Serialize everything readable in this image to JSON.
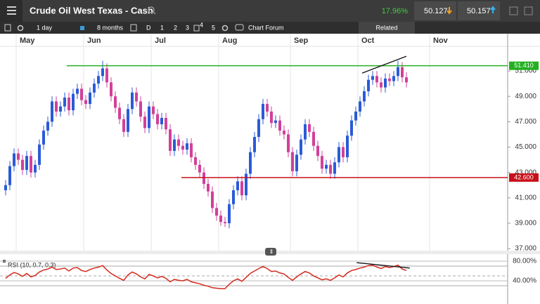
{
  "toolbar": {
    "instrument": "Crude Oil West Texas - Cash",
    "change": "17.96%",
    "sell": "50.127",
    "buy": "50.157",
    "interval": "1 day",
    "range": "8 months",
    "periods": [
      "D",
      "1",
      "2",
      "3",
      "4",
      "5"
    ],
    "forum": "Chart Forum",
    "related": "Related"
  },
  "chart_data": [
    {
      "type": "candlestick",
      "categories": [
        null,
        null,
        null,
        "May",
        null,
        null,
        null,
        null,
        null,
        null,
        null,
        null,
        null,
        null,
        null,
        null,
        null,
        null,
        null,
        "Jun",
        null,
        null,
        null,
        null,
        null,
        null,
        null,
        null,
        null,
        null,
        null,
        null,
        null,
        null,
        null,
        "Jul",
        null,
        null,
        null,
        null,
        null,
        null,
        null,
        null,
        null,
        null,
        null,
        null,
        null,
        null,
        null,
        "Aug",
        null,
        null,
        null,
        null,
        null,
        null,
        null,
        null,
        null,
        null,
        null,
        null,
        null,
        null,
        null,
        null,
        "Sep",
        null,
        null,
        null,
        null,
        null,
        null,
        null,
        null,
        null,
        null,
        null,
        null,
        null,
        null,
        null,
        "Oct",
        null,
        null,
        null,
        null,
        null,
        null,
        null,
        null,
        null,
        null,
        null,
        null,
        null,
        null,
        null,
        null,
        "Nov"
      ],
      "open": [
        41.6,
        42.0,
        43.5,
        44.5,
        44.0,
        43.2,
        44.3,
        43.0,
        43.6,
        45.2,
        46.3,
        47.0,
        48.6,
        47.8,
        48.2,
        48.9,
        47.9,
        49.2,
        49.6,
        48.7,
        48.4,
        49.3,
        50.0,
        50.6,
        51.2,
        50.1,
        49.0,
        48.1,
        47.2,
        46.2,
        48.0,
        49.3,
        48.6,
        47.4,
        46.5,
        48.2,
        47.6,
        46.8,
        47.3,
        46.4,
        44.7,
        45.6,
        45.1,
        44.8,
        45.3,
        44.2,
        43.6,
        43.0,
        42.1,
        41.5,
        40.2,
        39.6,
        39.1,
        39.0,
        40.5,
        41.6,
        42.3,
        41.2,
        42.9,
        44.6,
        45.8,
        47.2,
        48.4,
        47.8,
        46.9,
        47.1,
        46.3,
        46.0,
        44.6,
        43.1,
        44.4,
        45.6,
        46.8,
        46.2,
        45.1,
        44.3,
        43.3,
        43.6,
        42.9,
        43.8,
        45.0,
        44.2,
        45.9,
        47.1,
        47.8,
        48.6,
        49.4,
        50.3,
        50.6,
        50.1,
        49.7,
        50.4,
        50.2,
        50.6,
        51.3,
        50.5,
        null,
        null,
        null,
        null,
        null,
        null
      ],
      "high": [
        42.4,
        43.9,
        44.9,
        44.9,
        44.4,
        44.7,
        44.7,
        44.0,
        45.6,
        46.7,
        47.4,
        49.0,
        49.0,
        48.6,
        49.3,
        49.3,
        49.6,
        50.0,
        50.0,
        49.1,
        49.7,
        50.4,
        51.0,
        51.8,
        51.6,
        50.5,
        49.4,
        48.5,
        47.6,
        48.4,
        49.7,
        49.7,
        49.0,
        47.8,
        48.6,
        48.6,
        48.0,
        47.7,
        47.7,
        46.8,
        46.0,
        46.0,
        45.5,
        45.7,
        45.7,
        44.6,
        44.0,
        43.4,
        42.5,
        41.9,
        40.6,
        40.0,
        39.5,
        40.9,
        42.0,
        42.7,
        42.7,
        43.3,
        45.0,
        46.2,
        47.6,
        48.8,
        48.8,
        48.2,
        47.5,
        47.5,
        46.7,
        46.4,
        45.0,
        44.8,
        46.0,
        47.2,
        47.2,
        46.6,
        45.5,
        44.7,
        44.0,
        44.0,
        44.2,
        45.4,
        45.4,
        46.3,
        47.5,
        48.2,
        49.0,
        49.8,
        50.7,
        51.0,
        51.0,
        50.5,
        50.8,
        50.8,
        51.0,
        51.8,
        51.7,
        50.9,
        null,
        null,
        null,
        null,
        null,
        null
      ],
      "low": [
        41.2,
        41.6,
        43.1,
        43.6,
        42.8,
        42.8,
        42.6,
        42.6,
        43.2,
        44.8,
        45.9,
        46.6,
        47.4,
        47.4,
        47.8,
        47.5,
        47.5,
        48.8,
        48.3,
        48.0,
        48.0,
        48.9,
        49.6,
        50.2,
        49.7,
        48.6,
        47.7,
        46.8,
        45.8,
        45.8,
        47.6,
        48.2,
        47.0,
        46.1,
        46.1,
        47.2,
        46.4,
        46.4,
        46.0,
        44.3,
        44.3,
        44.7,
        44.4,
        44.4,
        43.8,
        43.2,
        42.6,
        41.7,
        41.1,
        39.8,
        39.2,
        38.8,
        38.7,
        38.6,
        40.1,
        41.2,
        40.8,
        40.8,
        42.5,
        44.2,
        45.4,
        46.8,
        47.4,
        46.5,
        46.5,
        45.9,
        45.6,
        44.2,
        42.7,
        42.7,
        44.0,
        45.2,
        45.8,
        44.7,
        43.9,
        42.9,
        42.9,
        42.5,
        42.5,
        43.4,
        43.8,
        43.8,
        45.5,
        46.7,
        47.4,
        48.2,
        49.0,
        49.9,
        49.7,
        49.3,
        49.3,
        49.8,
        49.8,
        50.2,
        50.1,
        49.7,
        null,
        null,
        null,
        null,
        null,
        null
      ],
      "close": [
        42.0,
        43.5,
        44.5,
        44.0,
        43.2,
        44.3,
        43.0,
        43.6,
        45.2,
        46.3,
        47.0,
        48.6,
        47.8,
        48.2,
        48.9,
        47.9,
        49.2,
        49.6,
        48.7,
        48.4,
        49.3,
        50.0,
        50.6,
        51.2,
        50.1,
        49.0,
        48.1,
        47.2,
        46.2,
        48.0,
        49.3,
        48.6,
        47.4,
        46.5,
        48.2,
        47.6,
        46.8,
        47.3,
        46.4,
        44.7,
        45.6,
        45.1,
        44.8,
        45.3,
        44.2,
        43.6,
        43.0,
        42.1,
        41.5,
        40.2,
        39.6,
        39.1,
        39.0,
        40.5,
        41.6,
        42.3,
        41.2,
        42.9,
        44.6,
        45.8,
        47.2,
        48.4,
        47.8,
        46.9,
        47.1,
        46.3,
        46.0,
        44.6,
        43.1,
        44.4,
        45.6,
        46.8,
        46.2,
        45.1,
        44.3,
        43.3,
        43.6,
        42.9,
        43.8,
        45.0,
        44.2,
        45.9,
        47.1,
        47.8,
        48.6,
        49.4,
        50.3,
        50.6,
        50.1,
        49.7,
        50.4,
        50.2,
        50.6,
        51.3,
        50.5,
        50.1,
        null,
        null,
        null,
        null,
        null,
        null
      ],
      "up_color": "#2a5bd7",
      "down_color": "#d1409a",
      "ylim": [
        36.84,
        52.94
      ],
      "yticks": [
        {
          "value": 37,
          "label": "37.000"
        },
        {
          "value": 39,
          "label": "39.000"
        },
        {
          "value": 41,
          "label": "41.000"
        },
        {
          "value": 43,
          "label": "43.000"
        },
        {
          "value": 45,
          "label": "45.000"
        },
        {
          "value": 47,
          "label": "47.000"
        },
        {
          "value": 49,
          "label": "49.000"
        },
        {
          "value": 51,
          "label": "51.000"
        }
      ],
      "hlines": [
        {
          "value": 51.41,
          "label": "51.410",
          "color": "#22b022"
        },
        {
          "value": 42.6,
          "label": "42.600",
          "color": "#c8101a"
        }
      ],
      "trendlines": [
        {
          "x": [
            84.5,
            95
          ],
          "y": [
            50.83,
            52.16
          ],
          "color": "#111111"
        }
      ],
      "grid": "x"
    },
    {
      "type": "line",
      "title": "RSI (10, 0.7, 0.3)",
      "values": [
        45,
        52,
        57,
        54,
        49,
        55,
        48,
        51,
        58,
        62,
        64,
        68,
        63,
        64,
        66,
        60,
        66,
        67,
        61,
        59,
        63,
        66,
        68,
        71,
        62,
        55,
        50,
        45,
        41,
        52,
        58,
        54,
        48,
        44,
        53,
        50,
        46,
        49,
        45,
        38,
        43,
        41,
        40,
        43,
        38,
        36,
        34,
        31,
        29,
        26,
        25,
        24,
        24,
        33,
        40,
        44,
        39,
        47,
        55,
        60,
        65,
        69,
        65,
        59,
        60,
        56,
        54,
        47,
        41,
        48,
        54,
        59,
        56,
        50,
        46,
        42,
        44,
        41,
        46,
        52,
        48,
        56,
        61,
        63,
        66,
        68,
        71,
        72,
        68,
        65,
        69,
        67,
        69,
        72,
        64,
        61,
        null,
        null,
        null,
        null,
        null,
        null
      ],
      "color": "#d42a1e",
      "ylim": [
        7.1,
        94.3
      ],
      "yticks": [
        {
          "value": 80,
          "label": "80.00%"
        },
        {
          "value": 40,
          "label": "40.00%"
        }
      ],
      "levels": [
        70,
        50,
        30
      ],
      "trendlines": [
        {
          "x": [
            83.2,
            95.8
          ],
          "y": [
            77,
            66
          ],
          "color": "#111111"
        }
      ]
    }
  ]
}
